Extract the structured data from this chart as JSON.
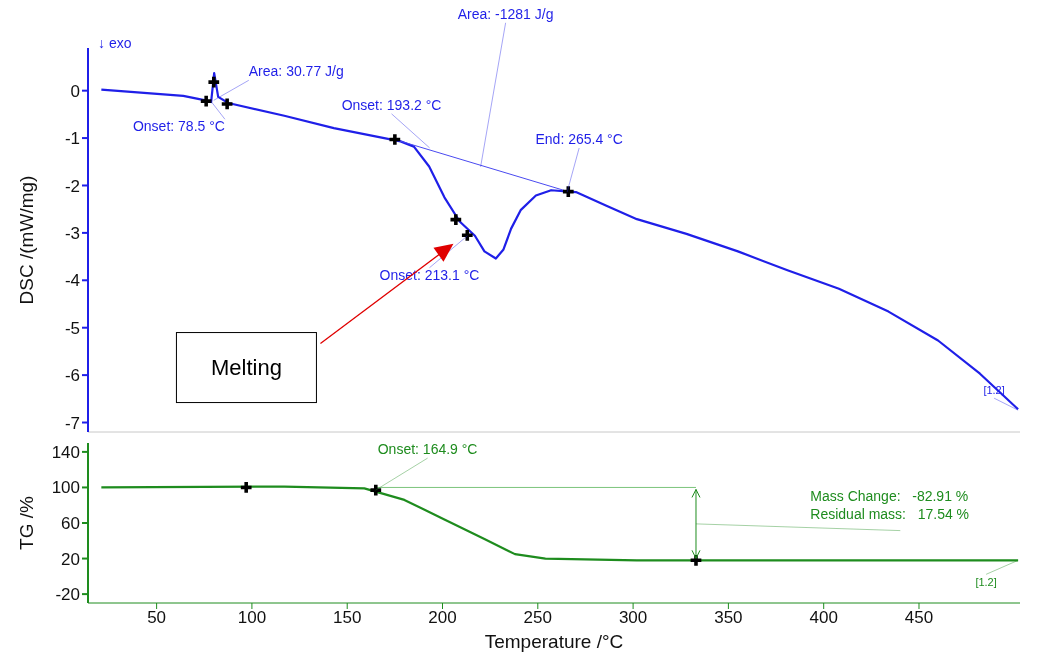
{
  "chart_data": [
    {
      "type": "line",
      "ylabel": "DSC /(mW/mg)",
      "xlim": [
        14,
        503
      ],
      "ylim": [
        -7.2,
        0.9
      ],
      "yticks": [
        0,
        -1,
        -2,
        -3,
        -4,
        -5,
        -6,
        -7
      ],
      "tick_labels": "y",
      "line_style": "solid",
      "marker": "none",
      "series": [
        {
          "color": "#1f1fe8",
          "x": [
            21,
            64,
            75,
            78.6,
            80.2,
            82.3,
            87.6,
            117,
            143,
            178,
            185,
            193,
            201,
            209,
            217,
            222,
            228,
            232,
            236,
            241,
            249,
            257,
            270,
            286,
            302,
            328,
            355,
            381,
            408,
            434,
            460,
            482,
            502
          ],
          "values": [
            0.02,
            -0.11,
            -0.2,
            -0.24,
            0.37,
            -0.13,
            -0.26,
            -0.53,
            -0.79,
            -1.07,
            -1.18,
            -1.6,
            -2.25,
            -2.76,
            -3.06,
            -3.39,
            -3.54,
            -3.35,
            -2.91,
            -2.52,
            -2.21,
            -2.1,
            -2.14,
            -2.43,
            -2.71,
            -3.02,
            -3.39,
            -3.79,
            -4.18,
            -4.66,
            -5.27,
            -5.97,
            -6.72
          ]
        },
        {
          "color": "#4a4af0",
          "x": [
            175,
            266
          ],
          "values": [
            -1.03,
            -2.13
          ]
        },
        {
          "type": "scatter",
          "color": "#000000",
          "marker": "cross",
          "x": [
            76,
            87,
            80,
            175,
            207,
            213,
            266
          ],
          "values": [
            -0.22,
            -0.28,
            0.18,
            -1.03,
            -2.72,
            -3.05,
            -2.13
          ]
        }
      ],
      "annotations": [
        "↓ exo",
        {
          "text": "Area: 30.77 J/g",
          "x": 80,
          "y": -0.2
        },
        {
          "text": "Onset: 78.5 °C",
          "x": 78.5,
          "y": -0.22
        },
        {
          "text": "Onset: 193.2 °C",
          "x": 193.2,
          "y": -1.2
        },
        {
          "text": "Area: -1281 J/g",
          "x": 220,
          "y": -1.6
        },
        {
          "text": "End: 265.4 °C",
          "x": 265.4,
          "y": -2.13
        },
        {
          "text": "Onset: 213.1 °C",
          "x": 213.1,
          "y": -3.05
        },
        "Melting",
        {
          "text": "[1.2]",
          "x": 502,
          "y": -6.72
        }
      ]
    },
    {
      "type": "line",
      "xlabel": "Temperature /°C",
      "ylabel": "TG /%",
      "xlim": [
        14,
        503
      ],
      "ylim": [
        -30,
        150
      ],
      "xticks": [
        50,
        100,
        150,
        200,
        250,
        300,
        350,
        400,
        450
      ],
      "yticks": [
        -20,
        20,
        60,
        100,
        140
      ],
      "line_style": "solid",
      "marker": "none",
      "series": [
        {
          "color": "#1e8c1e",
          "x": [
            21,
            117,
            159,
            180,
            201,
            222,
            238,
            254,
            302,
            502
          ],
          "values": [
            100,
            101,
            99,
            86,
            64,
            42,
            25,
            20,
            18,
            18
          ]
        },
        {
          "color": "#7cc47c",
          "x": [
            165,
            333
          ],
          "values": [
            100,
            100
          ]
        },
        {
          "type": "scatter",
          "color": "#000000",
          "marker": "cross",
          "x": [
            97,
            165,
            333
          ],
          "values": [
            100,
            97,
            18
          ]
        }
      ],
      "annotations": [
        {
          "text": "Onset: 164.9 °C",
          "x": 164.9,
          "y": 97
        },
        "Mass Change:   -82.91 %",
        "Residual mass:   17.54 %",
        {
          "text": "[1.2]",
          "x": 502,
          "y": 18
        }
      ]
    }
  ]
}
